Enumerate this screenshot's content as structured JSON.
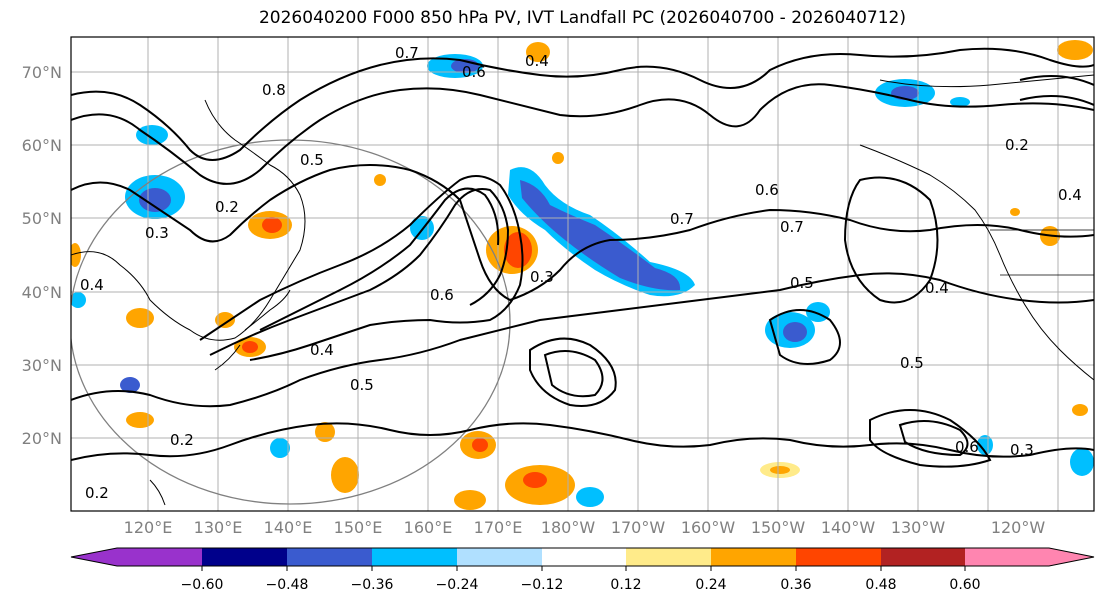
{
  "title": "2026040200 F000 850 hPa PV, IVT Landfall PC (2026040700 - 2026040712)",
  "latitude_labels": [
    "70°N",
    "60°N",
    "50°N",
    "40°N",
    "30°N",
    "20°N"
  ],
  "longitude_labels": [
    "120°E",
    "130°E",
    "140°E",
    "150°E",
    "160°E",
    "170°E",
    "180°W",
    "170°W",
    "160°W",
    "150°W",
    "140°W",
    "130°W",
    "120°W"
  ],
  "colorbar": {
    "ticks": [
      "−0.60",
      "−0.48",
      "−0.36",
      "−0.24",
      "−0.12",
      "0.12",
      "0.24",
      "0.36",
      "0.48",
      "0.60"
    ],
    "colors": [
      "#9932cc",
      "#00008b",
      "#3a5bcf",
      "#00bfff",
      "#b0e0ff",
      "#ffffff",
      "#ffeb8a",
      "#ffa500",
      "#ff4500",
      "#b22222",
      "#ff85b0"
    ]
  },
  "contour_labels": [
    "0.7",
    "0.4",
    "0.6",
    "0.8",
    "0.5",
    "0.2",
    "0.3",
    "0.4",
    "0.6",
    "0.5",
    "0.7",
    "0.4",
    "0.2",
    "0.3",
    "0.5",
    "0.6",
    "0.2",
    "0.4",
    "0.3",
    "0.6",
    "0.5",
    "0.2",
    "0.7",
    "0.4"
  ]
}
